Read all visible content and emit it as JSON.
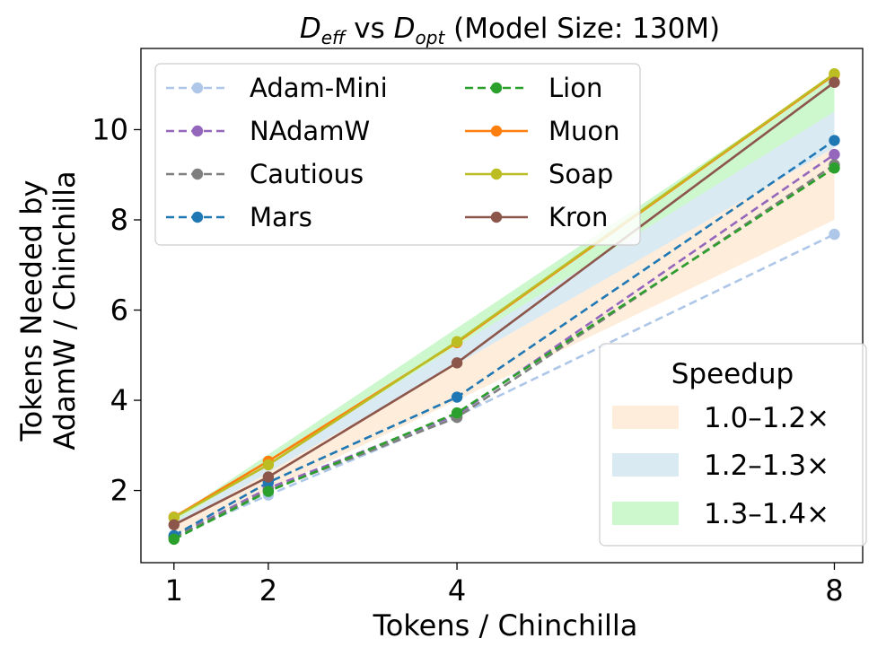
{
  "chart_data": {
    "type": "line",
    "title": {
      "d_eff_base": "D",
      "d_eff_sub": "eff",
      "vs": " vs ",
      "d_opt_base": "D",
      "d_opt_sub": "opt",
      "suffix": " (Model Size: 130M)"
    },
    "xlabel": "Tokens / Chinchilla",
    "ylabel_line1": "Tokens Needed by",
    "ylabel_line2": "AdamW / Chinchilla",
    "x": [
      1,
      2,
      4,
      8
    ],
    "xticks": [
      1,
      2,
      4,
      8
    ],
    "xtick_labels": [
      "1",
      "2",
      "4",
      "8"
    ],
    "yticks": [
      2,
      4,
      6,
      8,
      10
    ],
    "ytick_labels": [
      "2",
      "4",
      "6",
      "8",
      "10"
    ],
    "xlim": [
      0.65,
      8.3
    ],
    "ylim": [
      0.4,
      11.8
    ],
    "grid": false,
    "legend_position": "upper-left",
    "series": [
      {
        "name": "Adam-Mini",
        "values": [
          0.98,
          1.9,
          3.65,
          7.68
        ],
        "color": "#aec7e8",
        "dashed": true
      },
      {
        "name": "NAdamW",
        "values": [
          0.97,
          2.05,
          3.68,
          9.45
        ],
        "color": "#9467bd",
        "dashed": true
      },
      {
        "name": "Cautious",
        "values": [
          0.96,
          2.0,
          3.62,
          9.22
        ],
        "color": "#7f7f7f",
        "dashed": true
      },
      {
        "name": "Mars",
        "values": [
          1.0,
          2.18,
          4.07,
          9.76
        ],
        "color": "#1f77b4",
        "dashed": true
      },
      {
        "name": "Lion",
        "values": [
          0.92,
          1.98,
          3.72,
          9.15
        ],
        "color": "#2ca02c",
        "dashed": true
      },
      {
        "name": "Muon",
        "values": [
          1.41,
          2.65,
          5.28,
          11.22
        ],
        "color": "#ff7f0e",
        "dashed": false
      },
      {
        "name": "Soap",
        "values": [
          1.4,
          2.57,
          5.3,
          11.24
        ],
        "color": "#bcbd22",
        "dashed": false
      },
      {
        "name": "Kron",
        "values": [
          1.24,
          2.3,
          4.83,
          11.05
        ],
        "color": "#8c564b",
        "dashed": false
      }
    ],
    "bands": [
      {
        "label": "1.0–1.2×",
        "color": "#fdd8b0",
        "opacity": 0.45,
        "lower": [
          1.0,
          2.0,
          4.0,
          8.0
        ],
        "upper": [
          1.2,
          2.4,
          4.8,
          9.6
        ]
      },
      {
        "label": "1.2–1.3×",
        "color": "#a6cee3",
        "opacity": 0.42,
        "lower": [
          1.2,
          2.4,
          4.8,
          9.6
        ],
        "upper": [
          1.3,
          2.6,
          5.2,
          10.4
        ]
      },
      {
        "label": "1.3–1.4×",
        "color": "#90ee90",
        "opacity": 0.45,
        "lower": [
          1.3,
          2.6,
          5.2,
          10.4
        ],
        "upper": [
          1.4,
          2.8,
          5.6,
          11.2
        ]
      }
    ],
    "speedup_legend_title": "Speedup"
  }
}
